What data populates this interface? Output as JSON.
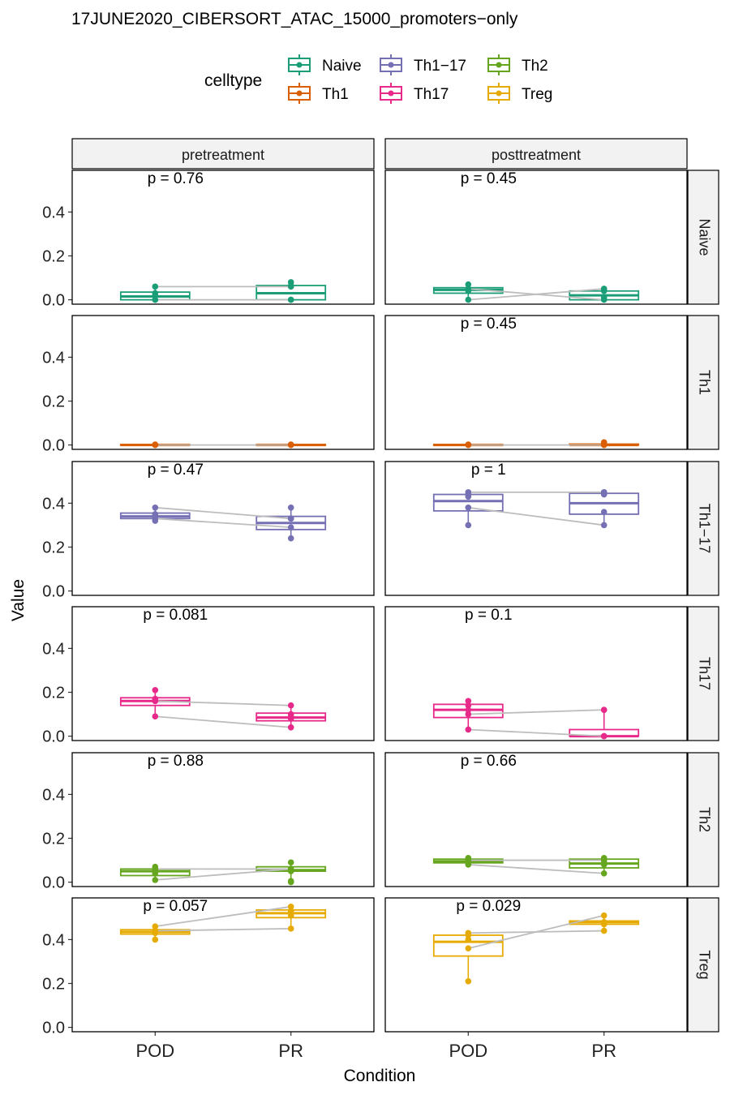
{
  "chart_data": {
    "type": "boxplot",
    "title": "17JUNE2020_CIBERSORT_ATAC_15000_promoters−only",
    "xlabel": "Condition",
    "ylabel": "Value",
    "legend": {
      "title": "celltype",
      "position": "top",
      "items": [
        {
          "name": "Naive",
          "color": "#1b9e77"
        },
        {
          "name": "Th1",
          "color": "#d95f02"
        },
        {
          "name": "Th1−17",
          "color": "#7570b3"
        },
        {
          "name": "Th17",
          "color": "#e7298a"
        },
        {
          "name": "Th2",
          "color": "#66a61e"
        },
        {
          "name": "Treg",
          "color": "#e6ab02"
        }
      ]
    },
    "columns": [
      "pretreatment",
      "posttreatment"
    ],
    "rows": [
      "Naive",
      "Th1",
      "Th1−17",
      "Th17",
      "Th2",
      "Treg"
    ],
    "categories": [
      "POD",
      "PR"
    ],
    "yticks": [
      "0.0",
      "0.2",
      "0.4"
    ],
    "ylim": [
      -0.02,
      0.59
    ],
    "panels": [
      {
        "row": 0,
        "col": 0,
        "p_label": "p = 0.76",
        "boxes": [
          {
            "q1": 0.0,
            "median": 0.015,
            "q3": 0.035,
            "lo": 0.0,
            "hi": 0.06
          },
          {
            "q1": 0.0,
            "median": 0.03,
            "q3": 0.065,
            "lo": 0.0,
            "hi": 0.08
          }
        ],
        "points": [
          [
            0.0,
            0.0
          ],
          [
            0.02,
            0.06
          ],
          [
            0.03,
            0.065
          ],
          [
            0.06,
            0.08
          ],
          [
            0.0,
            0.0
          ]
        ],
        "pairs": [
          [
            0.06,
            0.06
          ],
          [
            0.0,
            0.0
          ]
        ]
      },
      {
        "row": 0,
        "col": 1,
        "p_label": "p = 0.45",
        "boxes": [
          {
            "q1": 0.03,
            "median": 0.045,
            "q3": 0.055,
            "lo": 0.0,
            "hi": 0.07
          },
          {
            "q1": 0.0,
            "median": 0.02,
            "q3": 0.04,
            "lo": 0.0,
            "hi": 0.05
          }
        ],
        "points": [
          [
            0.0,
            0.05
          ],
          [
            0.04,
            0.04
          ],
          [
            0.05,
            0.0
          ],
          [
            0.07,
            0.01
          ],
          [
            0.05,
            0.05
          ]
        ],
        "pairs": [
          [
            0.0,
            0.05
          ],
          [
            0.05,
            0.0
          ]
        ]
      },
      {
        "row": 1,
        "col": 0,
        "p_label": "",
        "boxes": [
          {
            "q1": 0.0,
            "median": 0.0,
            "q3": 0.002,
            "lo": 0.0,
            "hi": 0.003
          },
          {
            "q1": 0.0,
            "median": 0.0,
            "q3": 0.002,
            "lo": 0.0,
            "hi": 0.003
          }
        ],
        "points": [
          [
            0.0,
            0.0
          ],
          [
            0.002,
            0.002
          ],
          [
            0.0,
            0.0
          ],
          [
            0.001,
            0.001
          ]
        ],
        "pairs": [
          [
            0.0,
            0.0
          ]
        ]
      },
      {
        "row": 1,
        "col": 1,
        "p_label": "p = 0.45",
        "boxes": [
          {
            "q1": 0.0,
            "median": 0.0,
            "q3": 0.002,
            "lo": 0.0,
            "hi": 0.003
          },
          {
            "q1": 0.0,
            "median": 0.0,
            "q3": 0.004,
            "lo": 0.0,
            "hi": 0.012
          }
        ],
        "points": [
          [
            0.0,
            0.0
          ],
          [
            0.002,
            0.012
          ],
          [
            0.0,
            0.005
          ],
          [
            0.001,
            0.0
          ]
        ],
        "pairs": [
          [
            0.0,
            0.0
          ]
        ]
      },
      {
        "row": 2,
        "col": 0,
        "p_label": "p = 0.47",
        "boxes": [
          {
            "q1": 0.33,
            "median": 0.34,
            "q3": 0.355,
            "lo": 0.32,
            "hi": 0.38
          },
          {
            "q1": 0.28,
            "median": 0.31,
            "q3": 0.34,
            "lo": 0.24,
            "hi": 0.38
          }
        ],
        "points": [
          [
            0.32,
            0.24
          ],
          [
            0.33,
            0.29
          ],
          [
            0.35,
            0.33
          ],
          [
            0.38,
            0.33
          ],
          [
            0.34,
            0.38
          ]
        ],
        "pairs": [
          [
            0.38,
            0.33
          ],
          [
            0.33,
            0.29
          ]
        ]
      },
      {
        "row": 2,
        "col": 1,
        "p_label": "p = 1",
        "boxes": [
          {
            "q1": 0.365,
            "median": 0.41,
            "q3": 0.44,
            "lo": 0.3,
            "hi": 0.45
          },
          {
            "q1": 0.35,
            "median": 0.4,
            "q3": 0.445,
            "lo": 0.3,
            "hi": 0.45
          }
        ],
        "points": [
          [
            0.3,
            0.3
          ],
          [
            0.38,
            0.36
          ],
          [
            0.43,
            0.44
          ],
          [
            0.45,
            0.45
          ],
          [
            0.44,
            0.45
          ]
        ],
        "pairs": [
          [
            0.45,
            0.45
          ],
          [
            0.38,
            0.3
          ]
        ]
      },
      {
        "row": 3,
        "col": 0,
        "p_label": "p = 0.081",
        "boxes": [
          {
            "q1": 0.14,
            "median": 0.16,
            "q3": 0.175,
            "lo": 0.09,
            "hi": 0.21
          },
          {
            "q1": 0.07,
            "median": 0.085,
            "q3": 0.105,
            "lo": 0.04,
            "hi": 0.14
          }
        ],
        "points": [
          [
            0.09,
            0.04
          ],
          [
            0.16,
            0.08
          ],
          [
            0.17,
            0.1
          ],
          [
            0.21,
            0.14
          ],
          [
            0.16,
            0.09
          ]
        ],
        "pairs": [
          [
            0.16,
            0.14
          ],
          [
            0.09,
            0.04
          ]
        ]
      },
      {
        "row": 3,
        "col": 1,
        "p_label": "p = 0.1",
        "boxes": [
          {
            "q1": 0.085,
            "median": 0.12,
            "q3": 0.145,
            "lo": 0.03,
            "hi": 0.16
          },
          {
            "q1": 0.0,
            "median": 0.0,
            "q3": 0.03,
            "lo": 0.0,
            "hi": 0.12
          }
        ],
        "points": [
          [
            0.03,
            0.0
          ],
          [
            0.1,
            0.0
          ],
          [
            0.14,
            0.12
          ],
          [
            0.16,
            0.12
          ],
          [
            0.12,
            0.0
          ]
        ],
        "pairs": [
          [
            0.1,
            0.12
          ],
          [
            0.03,
            0.0
          ]
        ]
      },
      {
        "row": 4,
        "col": 0,
        "p_label": "p = 0.88",
        "boxes": [
          {
            "q1": 0.03,
            "median": 0.05,
            "q3": 0.06,
            "lo": 0.01,
            "hi": 0.07
          },
          {
            "q1": 0.05,
            "median": 0.055,
            "q3": 0.07,
            "lo": 0.0,
            "hi": 0.09
          }
        ],
        "points": [
          [
            0.01,
            0.0
          ],
          [
            0.05,
            0.05
          ],
          [
            0.06,
            0.06
          ],
          [
            0.07,
            0.09
          ],
          [
            0.04,
            0.005
          ]
        ],
        "pairs": [
          [
            0.06,
            0.06
          ],
          [
            0.01,
            0.06
          ]
        ]
      },
      {
        "row": 4,
        "col": 1,
        "p_label": "p = 0.66",
        "boxes": [
          {
            "q1": 0.088,
            "median": 0.095,
            "q3": 0.105,
            "lo": 0.08,
            "hi": 0.11
          },
          {
            "q1": 0.065,
            "median": 0.085,
            "q3": 0.105,
            "lo": 0.04,
            "hi": 0.11
          }
        ],
        "points": [
          [
            0.08,
            0.04
          ],
          [
            0.09,
            0.08
          ],
          [
            0.1,
            0.1
          ],
          [
            0.11,
            0.11
          ],
          [
            0.095,
            0.09
          ]
        ],
        "pairs": [
          [
            0.1,
            0.1
          ],
          [
            0.08,
            0.04
          ]
        ]
      },
      {
        "row": 5,
        "col": 0,
        "p_label": "p = 0.057",
        "boxes": [
          {
            "q1": 0.425,
            "median": 0.435,
            "q3": 0.445,
            "lo": 0.4,
            "hi": 0.46
          },
          {
            "q1": 0.5,
            "median": 0.52,
            "q3": 0.535,
            "lo": 0.45,
            "hi": 0.55
          }
        ],
        "points": [
          [
            0.4,
            0.45
          ],
          [
            0.43,
            0.51
          ],
          [
            0.44,
            0.53
          ],
          [
            0.46,
            0.55
          ],
          [
            0.44,
            0.52
          ]
        ],
        "pairs": [
          [
            0.46,
            0.55
          ],
          [
            0.44,
            0.45
          ]
        ]
      },
      {
        "row": 5,
        "col": 1,
        "p_label": "p = 0.029",
        "boxes": [
          {
            "q1": 0.325,
            "median": 0.39,
            "q3": 0.42,
            "lo": 0.21,
            "hi": 0.43
          },
          {
            "q1": 0.47,
            "median": 0.48,
            "q3": 0.485,
            "lo": 0.44,
            "hi": 0.51
          }
        ],
        "points": [
          [
            0.21,
            0.44
          ],
          [
            0.36,
            0.47
          ],
          [
            0.42,
            0.48
          ],
          [
            0.43,
            0.51
          ],
          [
            0.4,
            0.475
          ]
        ],
        "pairs": [
          [
            0.43,
            0.44
          ],
          [
            0.36,
            0.51
          ]
        ]
      }
    ]
  }
}
